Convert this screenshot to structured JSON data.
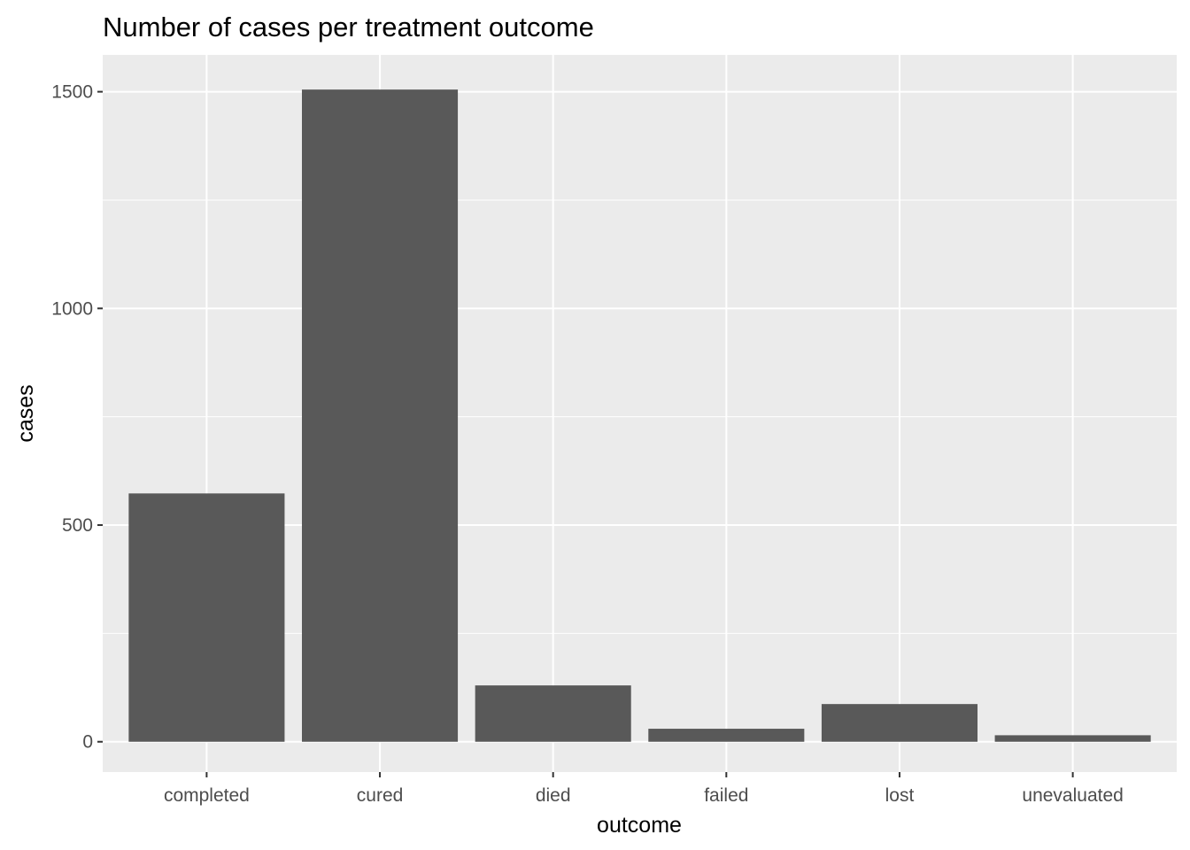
{
  "chart_data": {
    "type": "bar",
    "title": "Number of cases per treatment outcome",
    "xlabel": "outcome",
    "ylabel": "cases",
    "categories": [
      "completed",
      "cured",
      "died",
      "failed",
      "lost",
      "unevaluated"
    ],
    "values": [
      573,
      1505,
      130,
      30,
      87,
      15
    ],
    "ylim": [
      -70,
      1585
    ],
    "yticks": [
      0,
      500,
      1000,
      1500
    ],
    "yticks_minor": [
      250,
      750,
      1250
    ],
    "grid": true,
    "legend": "none",
    "colors": {
      "bar": "#595959",
      "panel": "#ebebeb",
      "grid": "#ffffff",
      "tick_text": "#4d4d4d",
      "tick_mark": "#333333"
    }
  }
}
